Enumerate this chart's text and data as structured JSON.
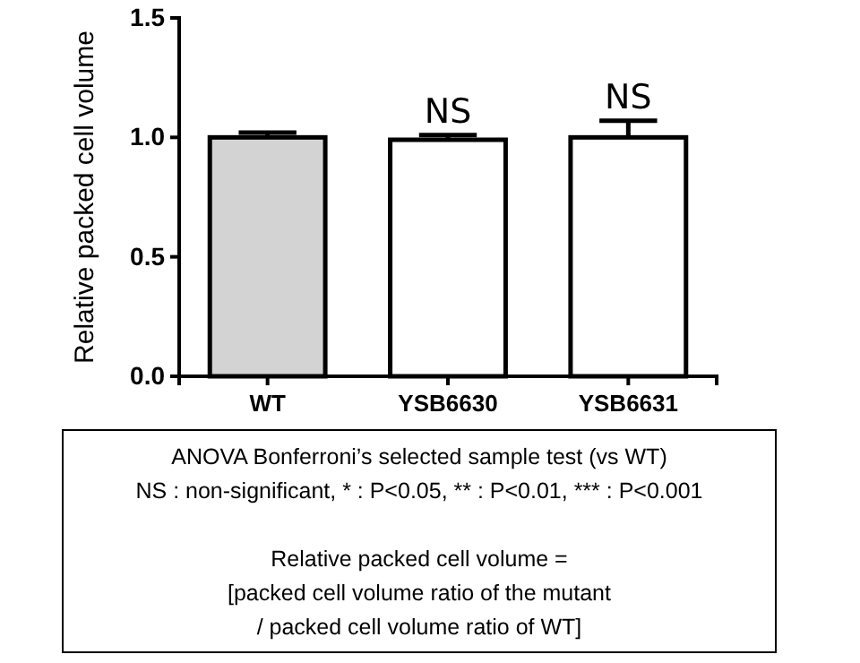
{
  "chart_data": {
    "type": "bar",
    "ylabel": "Relative packed cell volume",
    "categories": [
      "WT",
      "YSB6630",
      "YSB6631"
    ],
    "values": [
      1.0,
      0.99,
      1.0
    ],
    "colors": [
      "#d3d3d3",
      "#ffffff",
      "#ffffff"
    ],
    "errors": [
      0.02,
      0.02,
      0.07
    ],
    "ylim": [
      0,
      1.5
    ],
    "yticks": [
      {
        "value": 0,
        "label": "0.0"
      },
      {
        "value": 0.5,
        "label": "0.5"
      },
      {
        "value": 1,
        "label": "1.0"
      },
      {
        "value": 1.5,
        "label": "1.5"
      }
    ],
    "grid": false,
    "annotations": [
      {
        "text": "NS",
        "x": "YSB6630",
        "y": 1.01
      },
      {
        "text": "NS",
        "x": "YSB6631",
        "y": 1.07
      },
      "ANOVA Bonferroni’s selected sample test (vs WT)",
      "NS : non-significant, * : P<0.05, ** : P<0.01, *** : P<0.001",
      "Relative packed cell volume =",
      "[packed cell volume ratio of the mutant",
      "/ packed cell volume ratio of WT]"
    ]
  }
}
